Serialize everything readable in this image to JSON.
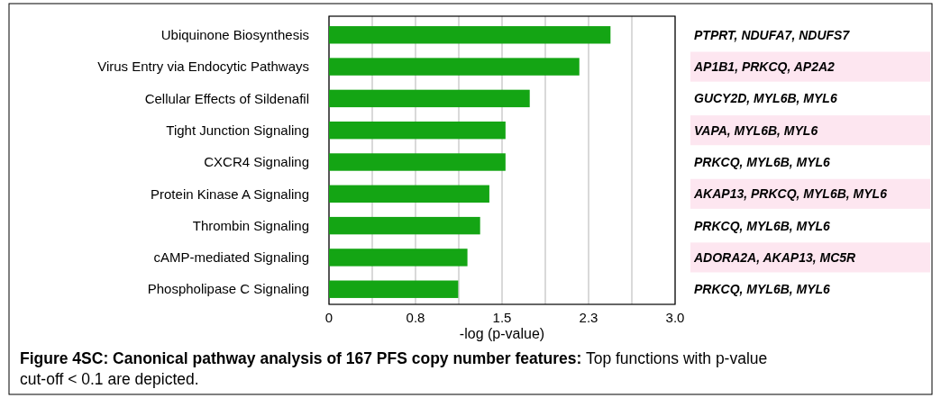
{
  "chart_data": {
    "type": "bar",
    "orientation": "horizontal",
    "title": "Figure 4SC: Canonical pathway analysis of 167 PFS copy number features:",
    "subtitle": "Top functions with p-value cut-off < 0.1 are depicted.",
    "xlabel": "-log (p-value)",
    "categories": [
      "Ubiquinone Biosynthesis",
      "Virus Entry via Endocytic Pathways",
      "Cellular Effects of Sildenafil",
      "Tight Junction Signaling",
      "CXCR4 Signaling",
      "Protein Kinase A Signaling",
      "Thrombin Signaling",
      "cAMP-mediated Signaling",
      "Phospholipase C Signaling"
    ],
    "values": [
      2.44,
      2.17,
      1.74,
      1.53,
      1.53,
      1.39,
      1.31,
      1.2,
      1.12
    ],
    "color": "#14a514",
    "xlim": [
      0,
      3
    ],
    "xticks": [
      0,
      {
        "value": 0.375,
        "label": null
      },
      {
        "value": 0.75,
        "label": "0.8"
      },
      {
        "value": 1.125,
        "label": null
      },
      1.5,
      {
        "value": 1.875,
        "label": null
      },
      {
        "value": 2.25,
        "label": "2.3"
      },
      {
        "value": 2.625,
        "label": null
      },
      {
        "value": 3,
        "label": "3.0"
      }
    ],
    "grid": "x",
    "annotations": [
      "PTPRT, NDUFA7, NDUFS7",
      "AP1B1, PRKCQ, AP2A2",
      "GUCY2D, MYL6B, MYL6",
      "VAPA, MYL6B, MYL6",
      "PRKCQ, MYL6B, MYL6",
      "AKAP13, PRKCQ, MYL6B, MYL6",
      "PRKCQ, MYL6B, MYL6",
      "ADORA2A, AKAP13, MC5R",
      "PRKCQ, MYL6B, MYL6"
    ]
  }
}
